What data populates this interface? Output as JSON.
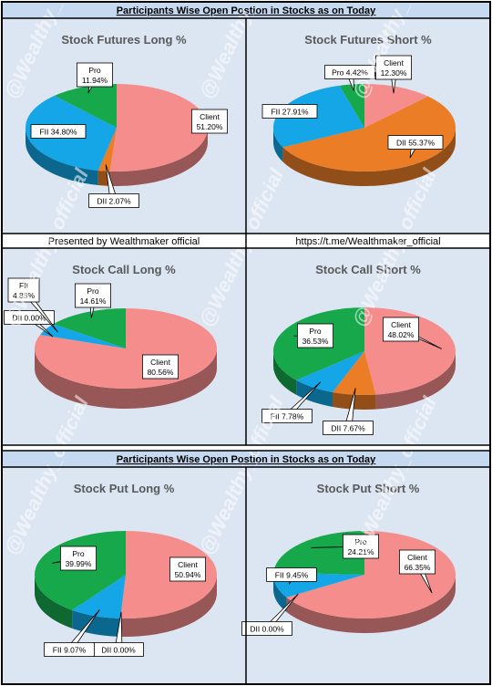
{
  "headers": {
    "top": "Participants Wise Open Postion in Stocks as on Today",
    "middle_left": "Presented by Wealthmaker official",
    "middle_right": "https://t.me/Wealthmaker_official",
    "bottom": "Participants Wise Open Postion in Stocks as on Today"
  },
  "watermark": "@Wealthy_official",
  "colors": {
    "Client": "#f58d8d",
    "Pro": "#17a84b",
    "FII": "#14a6e6",
    "DII": "#ea7d26"
  },
  "chart_data": [
    {
      "type": "pie",
      "title": "Stock Futures Long %",
      "slices": [
        {
          "name": "Client",
          "value": 51.2,
          "label": "Client\n51.20%"
        },
        {
          "name": "DII",
          "value": 2.07,
          "label": "DII 2.07%"
        },
        {
          "name": "FII",
          "value": 34.8,
          "label": "FII 34.80%"
        },
        {
          "name": "Pro",
          "value": 11.94,
          "label": "Pro\n11.94%"
        }
      ]
    },
    {
      "type": "pie",
      "title": "Stock Futures Short %",
      "slices": [
        {
          "name": "Client",
          "value": 12.3,
          "label": "Client\n12.30%"
        },
        {
          "name": "DII",
          "value": 55.37,
          "label": "DII 55.37%"
        },
        {
          "name": "FII",
          "value": 27.91,
          "label": "FII 27.91%"
        },
        {
          "name": "Pro",
          "value": 4.42,
          "label": "Pro 4.42%"
        }
      ]
    },
    {
      "type": "pie",
      "title": "Stock Call Long  %",
      "slices": [
        {
          "name": "Client",
          "value": 80.56,
          "label": "Client\n80.56%"
        },
        {
          "name": "DII",
          "value": 0.0,
          "label": "DII 0.00%"
        },
        {
          "name": "FII",
          "value": 4.83,
          "label": "FII\n4.83%"
        },
        {
          "name": "Pro",
          "value": 14.61,
          "label": "Pro\n14.61%"
        }
      ]
    },
    {
      "type": "pie",
      "title": "Stock Call Short %",
      "slices": [
        {
          "name": "Client",
          "value": 48.02,
          "label": "Client\n48.02%"
        },
        {
          "name": "DII",
          "value": 7.67,
          "label": "DII 7.67%"
        },
        {
          "name": "FII",
          "value": 7.78,
          "label": "FII 7.78%"
        },
        {
          "name": "Pro",
          "value": 36.53,
          "label": "Pro\n36.53%"
        }
      ]
    },
    {
      "type": "pie",
      "title": "Stock Put Long %",
      "slices": [
        {
          "name": "Client",
          "value": 50.94,
          "label": "Client\n50.94%"
        },
        {
          "name": "DII",
          "value": 0.0,
          "label": "DII 0.00%"
        },
        {
          "name": "FII",
          "value": 9.07,
          "label": "FII 9.07%"
        },
        {
          "name": "Pro",
          "value": 39.99,
          "label": "Pro\n39.99%"
        }
      ]
    },
    {
      "type": "pie",
      "title": "Stock Put Short %",
      "slices": [
        {
          "name": "Client",
          "value": 66.35,
          "label": "Client\n66.35%"
        },
        {
          "name": "DII",
          "value": 0.0,
          "label": "DII 0.00%"
        },
        {
          "name": "FII",
          "value": 9.45,
          "label": "FII 9.45%"
        },
        {
          "name": "Pro",
          "value": 24.21,
          "label": "Pro\n24.21%"
        }
      ]
    }
  ]
}
